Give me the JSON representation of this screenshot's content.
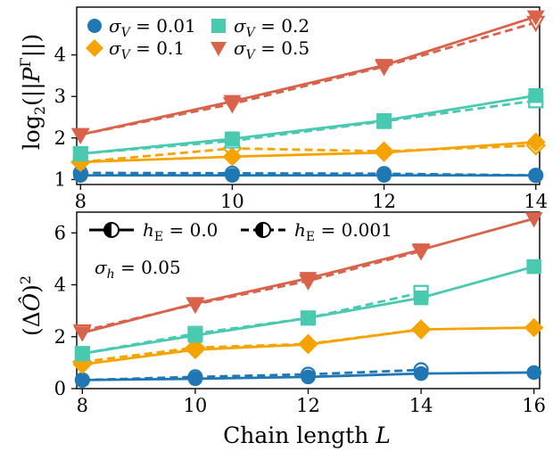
{
  "chart_data": [
    {
      "type": "line",
      "panel": "top",
      "ylabel": "log₂(||P^Γ||)",
      "x": [
        8,
        10,
        12,
        14
      ],
      "xlim": [
        7.95,
        14.05
      ],
      "ylim": [
        0.88,
        5.15
      ],
      "xticks": [
        "8",
        "10",
        "12",
        "14"
      ],
      "yticks": [
        "1",
        "2",
        "3",
        "4"
      ],
      "legend": {
        "placement": "top-left",
        "entries": [
          "σ_V = 0.01",
          "σ_V = 0.2",
          "σ_V = 0.1",
          "σ_V = 0.5"
        ]
      },
      "series": [
        {
          "name": "σ_V = 0.01",
          "color": "#1f77b4",
          "marker": "circle",
          "solid": [
            1.1,
            1.1,
            1.1,
            1.1
          ],
          "dashed": [
            1.16,
            1.15,
            1.14,
            1.1
          ]
        },
        {
          "name": "σ_V = 0.1",
          "color": "#f5a300",
          "marker": "diamond",
          "solid": [
            1.42,
            1.55,
            1.65,
            1.9
          ],
          "dashed": [
            1.42,
            1.75,
            1.68,
            1.82
          ]
        },
        {
          "name": "σ_V = 0.2",
          "color": "#48c9b0",
          "marker": "square",
          "solid": [
            1.62,
            1.98,
            2.42,
            3.02
          ],
          "dashed": [
            1.62,
            1.93,
            2.4,
            2.9
          ]
        },
        {
          "name": "σ_V = 0.5",
          "color": "#d9624b",
          "marker": "triangle-down",
          "solid": [
            2.08,
            2.88,
            3.75,
            4.92
          ],
          "dashed": [
            2.08,
            2.82,
            3.72,
            4.78
          ]
        }
      ]
    },
    {
      "type": "line",
      "panel": "bottom",
      "xlabel": "Chain length L",
      "ylabel": "(ΔÔ)²",
      "annotation": "σ_h = 0.05",
      "x": [
        8,
        10,
        12,
        14,
        16
      ],
      "xlim": [
        7.9,
        16.1
      ],
      "ylim": [
        0,
        6.8
      ],
      "xticks": [
        "8",
        "10",
        "12",
        "14",
        "16"
      ],
      "yticks": [
        "0",
        "2",
        "4",
        "6"
      ],
      "legend": {
        "placement": "top",
        "entries": [
          "h_E = 0.0",
          "h_E = 0.001"
        ]
      },
      "series": [
        {
          "name": "σ_V = 0.01",
          "color": "#1f77b4",
          "marker": "circle",
          "solid": [
            0.33,
            0.38,
            0.45,
            0.58,
            0.62
          ],
          "dashed": [
            0.33,
            0.45,
            0.55,
            0.72,
            null
          ]
        },
        {
          "name": "σ_V = 0.1",
          "color": "#f5a300",
          "marker": "diamond",
          "solid": [
            0.93,
            1.5,
            1.7,
            2.28,
            2.35
          ],
          "dashed": [
            1.03,
            1.58,
            1.72,
            2.28,
            null
          ]
        },
        {
          "name": "σ_V = 0.2",
          "color": "#48c9b0",
          "marker": "square",
          "solid": [
            1.35,
            2.05,
            2.72,
            3.5,
            4.7
          ],
          "dashed": [
            1.35,
            2.12,
            2.72,
            3.7,
            null
          ]
        },
        {
          "name": "σ_V = 0.5",
          "color": "#d9624b",
          "marker": "triangle-down",
          "solid": [
            2.15,
            3.28,
            4.25,
            5.35,
            6.55
          ],
          "dashed": [
            2.22,
            3.25,
            4.15,
            5.3,
            null
          ]
        }
      ]
    }
  ]
}
